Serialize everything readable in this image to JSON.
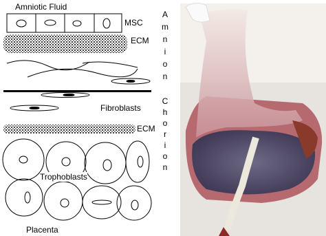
{
  "labels": {
    "amniotic_fluid": "Amniotic Fluid",
    "msc": "MSC",
    "ecm_amnion": "ECM",
    "amnion": "Amnion",
    "fibroblasts": "Fibroblasts",
    "chorion": "Chorion",
    "ecm_chorion": "ECM",
    "trophoblasts": "Trophoblasts",
    "placenta": "Placenta"
  }
}
